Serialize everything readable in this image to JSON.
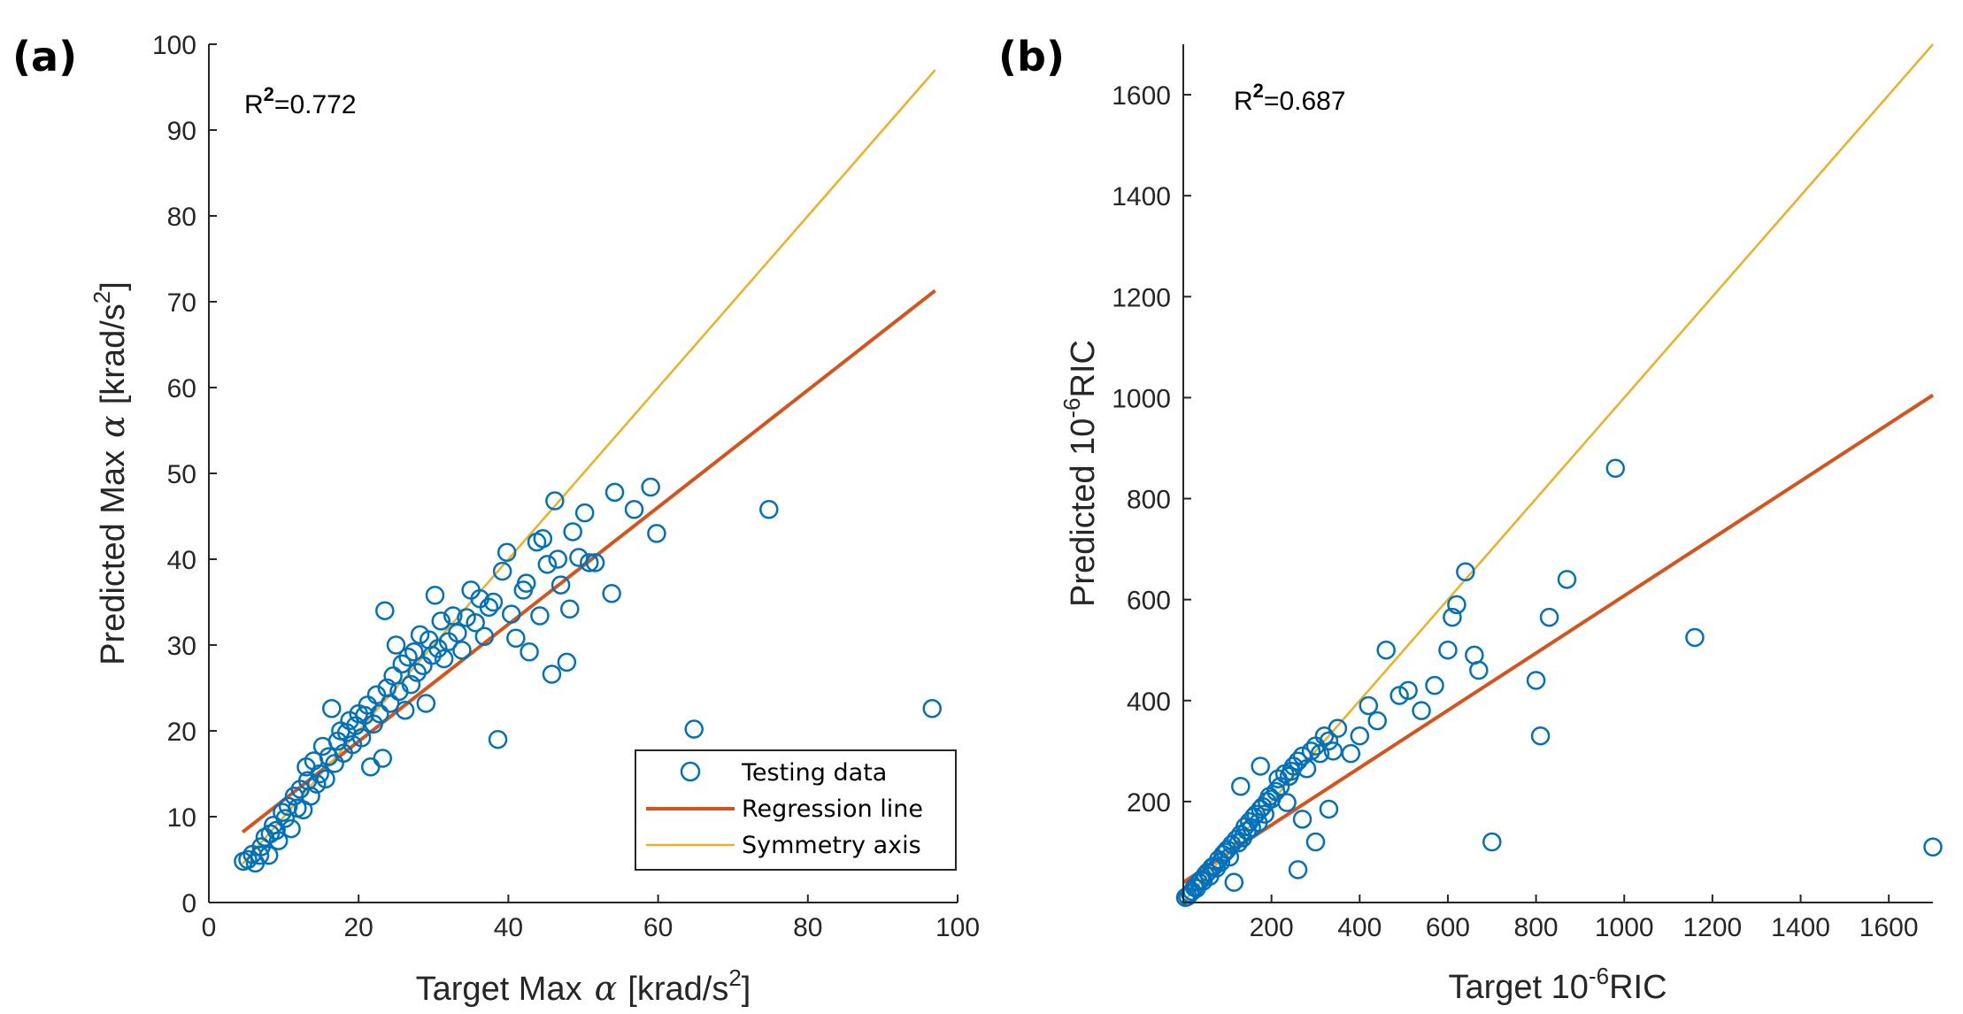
{
  "colors": {
    "points": "#0072BD",
    "regression": "#D95319",
    "symmetry": "#EDB120",
    "axis": "#262626"
  },
  "chart_data": [
    {
      "panel": "(a)",
      "type": "scatter",
      "annotation": {
        "label": "R",
        "sup": "2",
        "value": "=0.772"
      },
      "xlabel": {
        "main": "Target Max",
        "alpha": "α",
        "unit": "[krad/s",
        "sup": "2",
        "close": "]"
      },
      "ylabel": {
        "main": "Predicted Max",
        "alpha": "α",
        "unit": "[krad/s",
        "sup": "2",
        "close": "]"
      },
      "xlim": [
        0,
        100
      ],
      "ylim": [
        0,
        100
      ],
      "xticks": [
        0,
        20,
        40,
        60,
        80,
        100
      ],
      "yticks": [
        0,
        10,
        20,
        30,
        40,
        50,
        60,
        70,
        80,
        90,
        100
      ],
      "legend": {
        "position": "bottom-right",
        "entries": [
          "Testing data",
          "Regression line",
          "Symmetry axis"
        ]
      },
      "regression_line": {
        "x": [
          4.5,
          97
        ],
        "y": [
          8.2,
          71.3
        ]
      },
      "symmetry_axis": {
        "x": [
          4.5,
          97
        ],
        "y": [
          4.5,
          97
        ]
      },
      "points": [
        [
          4.6,
          4.8
        ],
        [
          5.2,
          5.0
        ],
        [
          5.8,
          5.6
        ],
        [
          6.2,
          4.6
        ],
        [
          6.8,
          5.5
        ],
        [
          7.0,
          6.5
        ],
        [
          7.5,
          7.6
        ],
        [
          8.0,
          5.5
        ],
        [
          8.2,
          8.0
        ],
        [
          8.6,
          9.0
        ],
        [
          9.0,
          8.4
        ],
        [
          9.3,
          7.2
        ],
        [
          9.8,
          10.5
        ],
        [
          10.2,
          9.8
        ],
        [
          10.6,
          11.2
        ],
        [
          11.0,
          8.6
        ],
        [
          11.4,
          12.4
        ],
        [
          11.8,
          11.0
        ],
        [
          12.2,
          13.2
        ],
        [
          12.6,
          10.8
        ],
        [
          13.0,
          15.8
        ],
        [
          13.2,
          14.2
        ],
        [
          13.6,
          12.4
        ],
        [
          14.0,
          16.5
        ],
        [
          14.4,
          13.8
        ],
        [
          14.8,
          15.0
        ],
        [
          15.2,
          18.2
        ],
        [
          15.6,
          14.4
        ],
        [
          16.0,
          17.0
        ],
        [
          16.4,
          22.6
        ],
        [
          16.8,
          16.2
        ],
        [
          17.2,
          18.8
        ],
        [
          17.6,
          20.0
        ],
        [
          18.0,
          17.4
        ],
        [
          18.4,
          19.8
        ],
        [
          18.8,
          21.2
        ],
        [
          19.2,
          18.4
        ],
        [
          19.6,
          20.6
        ],
        [
          20.0,
          22.0
        ],
        [
          20.4,
          19.2
        ],
        [
          20.8,
          21.8
        ],
        [
          21.2,
          23.0
        ],
        [
          21.6,
          15.8
        ],
        [
          22.0,
          20.8
        ],
        [
          22.4,
          24.2
        ],
        [
          22.8,
          22.0
        ],
        [
          23.2,
          16.8
        ],
        [
          23.5,
          34.0
        ],
        [
          23.8,
          25.0
        ],
        [
          24.2,
          23.2
        ],
        [
          24.6,
          26.4
        ],
        [
          25.0,
          30.0
        ],
        [
          25.4,
          24.6
        ],
        [
          25.8,
          27.8
        ],
        [
          26.2,
          22.4
        ],
        [
          26.6,
          28.6
        ],
        [
          27.0,
          25.4
        ],
        [
          27.4,
          29.2
        ],
        [
          27.8,
          26.8
        ],
        [
          28.2,
          31.2
        ],
        [
          28.6,
          27.6
        ],
        [
          29.0,
          23.2
        ],
        [
          29.4,
          30.6
        ],
        [
          29.8,
          28.8
        ],
        [
          30.2,
          35.8
        ],
        [
          30.6,
          29.6
        ],
        [
          31.0,
          32.8
        ],
        [
          31.4,
          28.4
        ],
        [
          32.0,
          30.4
        ],
        [
          32.6,
          33.4
        ],
        [
          33.2,
          31.4
        ],
        [
          33.8,
          29.4
        ],
        [
          34.4,
          33.2
        ],
        [
          35.0,
          36.4
        ],
        [
          35.6,
          32.6
        ],
        [
          36.2,
          35.4
        ],
        [
          36.8,
          31.0
        ],
        [
          37.4,
          34.4
        ],
        [
          38.0,
          35.0
        ],
        [
          38.6,
          19.0
        ],
        [
          39.2,
          38.6
        ],
        [
          39.8,
          40.8
        ],
        [
          40.4,
          33.6
        ],
        [
          41.0,
          30.8
        ],
        [
          42.0,
          36.4
        ],
        [
          42.4,
          37.2
        ],
        [
          42.8,
          29.2
        ],
        [
          43.8,
          42.0
        ],
        [
          44.2,
          33.4
        ],
        [
          44.6,
          42.4
        ],
        [
          45.2,
          39.4
        ],
        [
          45.8,
          26.6
        ],
        [
          46.2,
          46.8
        ],
        [
          46.6,
          40.0
        ],
        [
          47.0,
          37.0
        ],
        [
          47.8,
          28.0
        ],
        [
          48.2,
          34.2
        ],
        [
          48.6,
          43.2
        ],
        [
          49.4,
          40.2
        ],
        [
          50.2,
          45.4
        ],
        [
          50.8,
          39.6
        ],
        [
          51.6,
          39.6
        ],
        [
          53.8,
          36.0
        ],
        [
          54.2,
          47.8
        ],
        [
          56.8,
          45.8
        ],
        [
          59.0,
          48.4
        ],
        [
          59.8,
          43.0
        ],
        [
          64.8,
          20.2
        ],
        [
          74.8,
          45.8
        ],
        [
          96.6,
          22.6
        ]
      ]
    },
    {
      "panel": "(b)",
      "type": "scatter",
      "annotation": {
        "label": "R",
        "sup": "2",
        "value": "=0.687"
      },
      "xlabel": {
        "main": "Target 10",
        "sup": "-6",
        "rest": "RIC"
      },
      "ylabel": {
        "main": "Predicted 10",
        "sup": "-6",
        "rest": "RIC"
      },
      "xlim": [
        0,
        1700
      ],
      "ylim": [
        0,
        1700
      ],
      "xticks": [
        200,
        400,
        600,
        800,
        1000,
        1200,
        1400,
        1600
      ],
      "yticks": [
        200,
        400,
        600,
        800,
        1000,
        1200,
        1400,
        1600
      ],
      "regression_line": {
        "x": [
          0,
          1700
        ],
        "y": [
          40,
          1005
        ]
      },
      "symmetry_axis": {
        "x": [
          0,
          1700
        ],
        "y": [
          0,
          1700
        ]
      },
      "points": [
        [
          5,
          10
        ],
        [
          10,
          12
        ],
        [
          15,
          18
        ],
        [
          20,
          22
        ],
        [
          25,
          30
        ],
        [
          30,
          28
        ],
        [
          35,
          40
        ],
        [
          40,
          45
        ],
        [
          45,
          42
        ],
        [
          50,
          55
        ],
        [
          55,
          60
        ],
        [
          60,
          52
        ],
        [
          65,
          70
        ],
        [
          70,
          72
        ],
        [
          75,
          68
        ],
        [
          80,
          85
        ],
        [
          85,
          80
        ],
        [
          90,
          95
        ],
        [
          95,
          100
        ],
        [
          100,
          105
        ],
        [
          105,
          90
        ],
        [
          110,
          115
        ],
        [
          115,
          40
        ],
        [
          120,
          125
        ],
        [
          125,
          118
        ],
        [
          130,
          135
        ],
        [
          135,
          128
        ],
        [
          140,
          150
        ],
        [
          145,
          142
        ],
        [
          150,
          160
        ],
        [
          155,
          148
        ],
        [
          160,
          170
        ],
        [
          165,
          175
        ],
        [
          170,
          158
        ],
        [
          175,
          185
        ],
        [
          180,
          190
        ],
        [
          185,
          175
        ],
        [
          190,
          200
        ],
        [
          195,
          210
        ],
        [
          200,
          205
        ],
        [
          210,
          220
        ],
        [
          215,
          245
        ],
        [
          220,
          230
        ],
        [
          230,
          255
        ],
        [
          235,
          198
        ],
        [
          240,
          250
        ],
        [
          245,
          260
        ],
        [
          250,
          270
        ],
        [
          260,
          280
        ],
        [
          270,
          290
        ],
        [
          280,
          265
        ],
        [
          290,
          300
        ],
        [
          300,
          310
        ],
        [
          310,
          295
        ],
        [
          320,
          330
        ],
        [
          330,
          320
        ],
        [
          340,
          300
        ],
        [
          350,
          345
        ],
        [
          130,
          230
        ],
        [
          175,
          270
        ],
        [
          260,
          65
        ],
        [
          270,
          165
        ],
        [
          300,
          120
        ],
        [
          330,
          185
        ],
        [
          380,
          295
        ],
        [
          400,
          330
        ],
        [
          420,
          390
        ],
        [
          440,
          360
        ],
        [
          460,
          500
        ],
        [
          490,
          410
        ],
        [
          510,
          420
        ],
        [
          540,
          380
        ],
        [
          570,
          430
        ],
        [
          600,
          500
        ],
        [
          610,
          565
        ],
        [
          620,
          590
        ],
        [
          640,
          655
        ],
        [
          660,
          490
        ],
        [
          670,
          460
        ],
        [
          700,
          120
        ],
        [
          800,
          440
        ],
        [
          810,
          330
        ],
        [
          830,
          565
        ],
        [
          870,
          640
        ],
        [
          980,
          860
        ],
        [
          1160,
          525
        ],
        [
          1700,
          110
        ]
      ]
    }
  ]
}
